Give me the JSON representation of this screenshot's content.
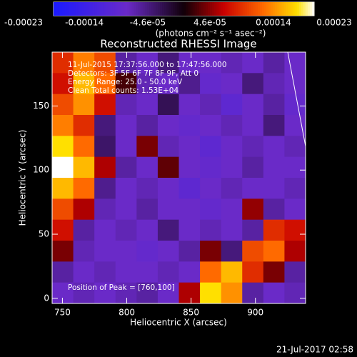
{
  "chart_data": {
    "type": "heatmap",
    "title": "Reconstructed RHESSI Image",
    "x_label": "Heliocentric X (arcsec)",
    "y_label": "Heliocentric Y (arcsec)",
    "colorbar_label": "(photons cm⁻² s⁻¹ asec⁻²)",
    "footer": "21-Jul-2017 02:58",
    "annotations": [
      "11-Jul-2015 17:37:56.000 to 17:47:56.000",
      "Detectors: 3F 5F 6F 7F 8F 9F, Att 0",
      "Energy Range: 25.0 - 50.0 keV",
      "Clean     Total counts: 1.53E+04"
    ],
    "peak_note": "Position of Peak = [760,100]",
    "xlim": [
      742,
      939
    ],
    "ylim": [
      -4,
      192
    ],
    "xticks": [
      750,
      800,
      850,
      900
    ],
    "yticks": [
      0,
      50,
      100,
      150
    ],
    "clim": [
      -0.00023,
      0.00023
    ],
    "cticks": [
      -0.00023,
      -0.00014,
      {
        "value": -4.6e-05,
        "label": "-4.6e-05"
      },
      {
        "value": 4.6e-05,
        "label": "4.6e-05"
      },
      0.00014,
      0.00023
    ],
    "colormap": [
      [
        -0.00023,
        "#1a1aff"
      ],
      [
        -0.0001,
        "#6a2ac8"
      ],
      [
        0,
        "#100008"
      ],
      [
        7e-05,
        "#c80000"
      ],
      [
        0.00014,
        "#ff6a00"
      ],
      [
        0.0002,
        "#ffe000"
      ],
      [
        0.00023,
        "#ffffff"
      ]
    ],
    "z": [
      [
        0.0001,
        0.00015,
        0.00012,
        -8e-05,
        -0.0001,
        -6e-05,
        -0.0001,
        -0.0001,
        -9e-05,
        -0.0001,
        -8e-05,
        -0.0001
      ],
      [
        8e-05,
        0.00018,
        0.00014,
        2e-05,
        -9e-05,
        -0.0001,
        -7e-05,
        -0.00011,
        -0.0001,
        -6e-05,
        -9e-05,
        -0.0001
      ],
      [
        0.00012,
        0.00016,
        8e-05,
        -9e-05,
        -0.0001,
        -4e-05,
        -0.0001,
        -9e-05,
        -0.00012,
        -0.0001,
        -8e-05,
        -0.00011
      ],
      [
        0.00015,
        0.0001,
        -6e-05,
        -0.0001,
        -8e-05,
        -0.0001,
        -0.00011,
        -0.0001,
        -9e-05,
        -0.0001,
        -6e-05,
        -0.0001
      ],
      [
        0.0002,
        0.00014,
        -5e-05,
        -0.0001,
        4e-05,
        -9e-05,
        -0.0001,
        -0.00012,
        -0.0001,
        -9e-05,
        -0.0001,
        -9e-05
      ],
      [
        0.00023,
        0.00018,
        6e-05,
        -8e-05,
        -0.0001,
        3e-05,
        -0.0001,
        -0.00011,
        -0.0001,
        -8e-05,
        -0.0001,
        -0.0001
      ],
      [
        0.00018,
        0.00014,
        -7e-05,
        -0.0001,
        -9e-05,
        -0.0001,
        -0.00012,
        -0.0001,
        -9e-05,
        -0.0001,
        -0.0001,
        -9e-05
      ],
      [
        0.00012,
        6e-05,
        -9e-05,
        -0.0001,
        -8e-05,
        -0.0001,
        -0.0001,
        -0.00011,
        -0.0001,
        5e-05,
        -8e-05,
        -0.0001
      ],
      [
        8e-05,
        -8e-05,
        -0.0001,
        -9e-05,
        -0.0001,
        -6e-05,
        -0.0001,
        -9e-05,
        -0.0001,
        -8e-05,
        0.0001,
        8e-05
      ],
      [
        4e-05,
        -9e-05,
        -0.0001,
        -0.0001,
        -0.00011,
        -0.0001,
        -8e-05,
        4e-05,
        -6e-05,
        0.00012,
        0.00014,
        6e-05
      ],
      [
        -8e-05,
        -0.0001,
        -9e-05,
        -0.0001,
        -0.0001,
        -9e-05,
        -0.0001,
        0.00014,
        0.00018,
        0.0001,
        4e-05,
        -8e-05
      ],
      [
        -0.0001,
        -9e-05,
        -0.0001,
        -9e-05,
        -8e-05,
        -0.0001,
        6e-05,
        0.0002,
        0.00016,
        -8e-05,
        -0.0001,
        -9e-05
      ]
    ]
  }
}
